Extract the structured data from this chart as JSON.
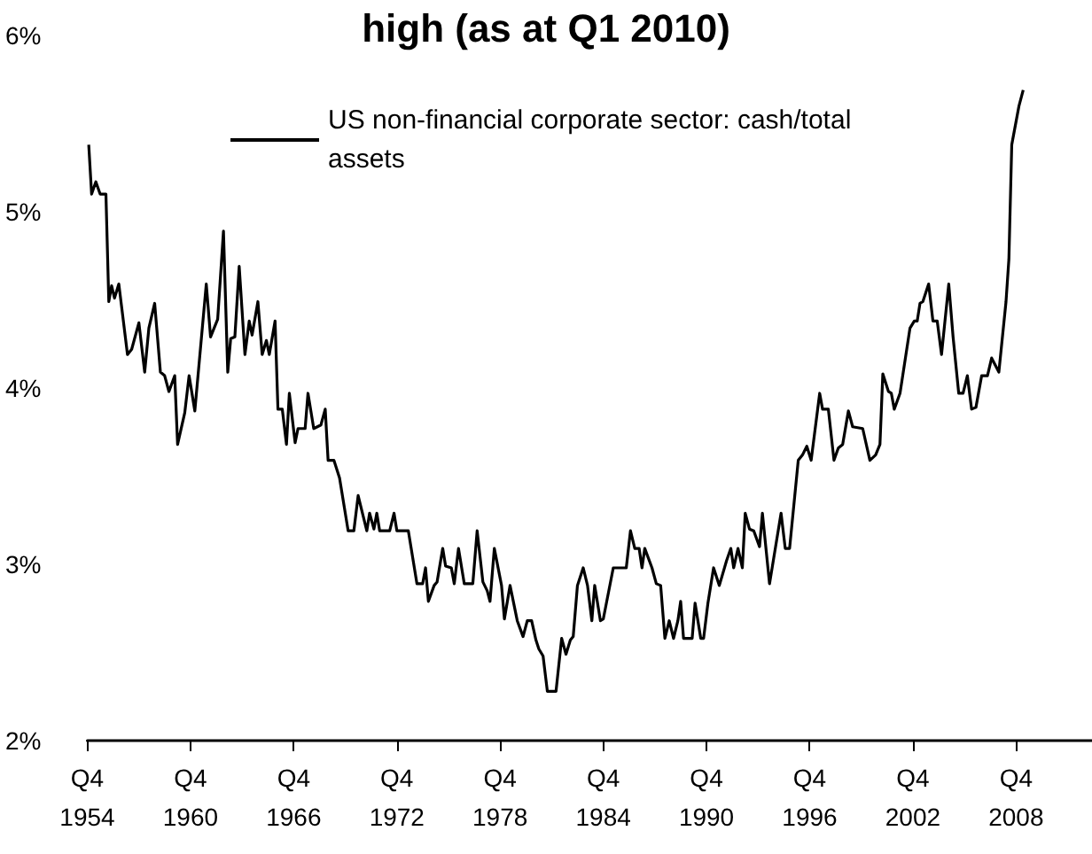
{
  "chart_data": {
    "type": "line",
    "title": "high (as at Q1 2010)",
    "x": [
      "1954-11",
      "1955-01",
      "1955-04",
      "1955-07",
      "1955-11",
      "1956-01",
      "1956-03",
      "1956-05",
      "1956-08",
      "1957-02",
      "1957-05",
      "1957-10",
      "1958-02",
      "1958-05",
      "1958-09",
      "1959-01",
      "1959-04",
      "1959-07",
      "1959-11",
      "1960-01",
      "1960-06",
      "1960-09",
      "1961-01",
      "1961-09",
      "1961-12",
      "1962-05",
      "1962-09",
      "1962-12",
      "1963-02",
      "1963-05",
      "1963-08",
      "1963-12",
      "1964-03",
      "1964-05",
      "1964-09",
      "1964-12",
      "1965-03",
      "1965-05",
      "1965-09",
      "1965-11",
      "1966-02",
      "1966-05",
      "1966-07",
      "1966-11",
      "1967-01",
      "1967-06",
      "1967-08",
      "1967-12",
      "1968-05",
      "1968-08",
      "1968-10",
      "1969-02",
      "1969-06",
      "1969-12",
      "1970-04",
      "1970-07",
      "1970-10",
      "1971-01",
      "1971-03",
      "1971-06",
      "1971-08",
      "1971-10",
      "1972-05",
      "1972-08",
      "1972-10",
      "1973-06",
      "1973-12",
      "1974-04",
      "1974-06",
      "1974-08",
      "1974-12",
      "1975-02",
      "1975-06",
      "1975-08",
      "1975-12",
      "1976-02",
      "1976-05",
      "1976-09",
      "1977-03",
      "1977-06",
      "1977-10",
      "1978-01",
      "1978-03",
      "1978-06",
      "1978-11",
      "1979-01",
      "1979-05",
      "1979-10",
      "1980-02",
      "1980-05",
      "1980-08",
      "1980-11",
      "1981-01",
      "1981-04",
      "1981-07",
      "1982-01",
      "1982-05",
      "1982-08",
      "1982-11",
      "1983-01",
      "1983-04",
      "1983-08",
      "1983-11",
      "1984-02",
      "1984-04",
      "1984-08",
      "1984-10",
      "1985-05",
      "1986-02",
      "1986-05",
      "1986-08",
      "1986-11",
      "1987-01",
      "1987-03",
      "1987-08",
      "1987-11",
      "1988-02",
      "1988-05",
      "1988-08",
      "1988-11",
      "1989-02",
      "1989-04",
      "1989-06",
      "1989-12",
      "1990-02",
      "1990-06",
      "1990-08",
      "1990-11",
      "1991-03",
      "1991-07",
      "1991-12",
      "1992-03",
      "1992-05",
      "1992-08",
      "1992-11",
      "1993-01",
      "1993-04",
      "1993-07",
      "1993-11",
      "1994-01",
      "1994-06",
      "1995-02",
      "1995-05",
      "1995-08",
      "1996-02",
      "1996-05",
      "1996-08",
      "1996-11",
      "1997-05",
      "1997-07",
      "1997-11",
      "1998-03",
      "1998-06",
      "1998-09",
      "1999-01",
      "1999-04",
      "1999-11",
      "2000-04",
      "2000-08",
      "2000-11",
      "2001-01",
      "2001-05",
      "2001-07",
      "2001-09",
      "2002-01",
      "2002-08",
      "2002-11",
      "2003-01",
      "2003-03",
      "2003-05",
      "2003-09",
      "2003-12",
      "2004-03",
      "2004-06",
      "2004-11",
      "2005-02",
      "2005-06",
      "2005-09",
      "2005-12",
      "2006-03",
      "2006-06",
      "2006-10",
      "2007-02",
      "2007-05",
      "2007-10",
      "2008-03",
      "2008-05",
      "2008-07",
      "2008-12",
      "2009-03"
    ],
    "series": [
      {
        "name": "US non-financial corporate sector: cash/total assets",
        "color": "#000000",
        "values": [
          5.38,
          5.1,
          5.17,
          5.1,
          5.1,
          4.49,
          4.58,
          4.51,
          4.59,
          4.19,
          4.22,
          4.37,
          4.09,
          4.34,
          4.48,
          4.09,
          4.07,
          3.98,
          4.07,
          3.68,
          3.86,
          4.07,
          3.87,
          4.59,
          4.29,
          4.39,
          4.89,
          4.09,
          4.28,
          4.29,
          4.69,
          4.19,
          4.38,
          4.3,
          4.49,
          4.19,
          4.27,
          4.19,
          4.38,
          3.88,
          3.88,
          3.68,
          3.97,
          3.69,
          3.77,
          3.77,
          3.97,
          3.77,
          3.79,
          3.88,
          3.59,
          3.59,
          3.49,
          3.19,
          3.19,
          3.39,
          3.29,
          3.19,
          3.29,
          3.2,
          3.29,
          3.19,
          3.19,
          3.29,
          3.19,
          3.19,
          2.89,
          2.89,
          2.98,
          2.79,
          2.88,
          2.9,
          3.09,
          2.99,
          2.98,
          2.89,
          3.09,
          2.89,
          2.89,
          3.19,
          2.9,
          2.85,
          2.79,
          3.09,
          2.88,
          2.69,
          2.88,
          2.68,
          2.59,
          2.68,
          2.68,
          2.57,
          2.52,
          2.48,
          2.28,
          2.28,
          2.58,
          2.49,
          2.57,
          2.59,
          2.88,
          2.98,
          2.88,
          2.68,
          2.88,
          2.68,
          2.69,
          2.98,
          2.98,
          3.19,
          3.09,
          3.09,
          2.98,
          3.09,
          2.98,
          2.89,
          2.88,
          2.58,
          2.68,
          2.58,
          2.68,
          2.79,
          2.58,
          2.58,
          2.78,
          2.58,
          2.58,
          2.78,
          2.98,
          2.88,
          3.02,
          3.09,
          2.98,
          3.09,
          2.98,
          3.29,
          3.2,
          3.19,
          3.1,
          3.29,
          2.89,
          3.29,
          3.09,
          3.09,
          3.59,
          3.62,
          3.67,
          3.59,
          3.97,
          3.88,
          3.88,
          3.59,
          3.66,
          3.68,
          3.87,
          3.78,
          3.77,
          3.59,
          3.62,
          3.68,
          4.08,
          3.98,
          3.97,
          3.88,
          3.97,
          4.34,
          4.38,
          4.38,
          4.48,
          4.49,
          4.59,
          4.38,
          4.38,
          4.19,
          4.59,
          4.29,
          3.97,
          3.97,
          4.07,
          3.88,
          3.89,
          4.07,
          4.07,
          4.17,
          4.09,
          4.49,
          4.73,
          5.38,
          5.6,
          5.69
        ]
      }
    ],
    "xlim": [
      "1954-10",
      "2013-03"
    ],
    "xticks": [
      {
        "value": "1954-10",
        "label": "Q4\n1954"
      },
      {
        "value": "1960-10",
        "label": "Q4\n1960"
      },
      {
        "value": "1966-10",
        "label": "Q4\n1966"
      },
      {
        "value": "1972-10",
        "label": "Q4\n1972"
      },
      {
        "value": "1978-10",
        "label": "Q4\n1978"
      },
      {
        "value": "1984-10",
        "label": "Q4\n1984"
      },
      {
        "value": "1990-10",
        "label": "Q4\n1990"
      },
      {
        "value": "1996-10",
        "label": "Q4\n1996"
      },
      {
        "value": "2002-10",
        "label": "Q4\n2002"
      },
      {
        "value": "2008-10",
        "label": "Q4\n2008"
      }
    ],
    "ylim": [
      2,
      6
    ],
    "yticks": [
      {
        "value": 2,
        "label": "2%"
      },
      {
        "value": 3,
        "label": "3%"
      },
      {
        "value": 4,
        "label": "4%"
      },
      {
        "value": 5,
        "label": "5%"
      },
      {
        "value": 6,
        "label": "6%"
      }
    ],
    "grid": false,
    "legend": "top",
    "marker": "none",
    "line_style": "solid"
  }
}
